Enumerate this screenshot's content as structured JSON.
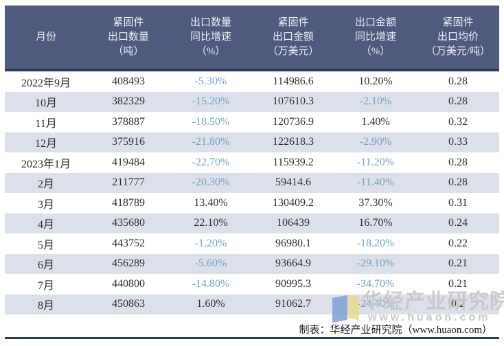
{
  "chart_data": {
    "type": "table",
    "title": "",
    "columns": [
      "月份",
      "紧固件\n出口数量\n（吨）",
      "出口数量\n同比增速\n（%）",
      "紧固件\n出口金额\n（万美元）",
      "出口金额\n同比增速\n（%）",
      "紧固件\n出口均价\n（万美元/吨）"
    ],
    "rows": [
      [
        "2022年9月",
        "408493",
        "-5.30%",
        "114986.6",
        "10.20%",
        "0.28"
      ],
      [
        "10月",
        "382329",
        "-15.20%",
        "107610.3",
        "-2.10%",
        "0.28"
      ],
      [
        "11月",
        "378887",
        "-18.50%",
        "120736.9",
        "1.40%",
        "0.32"
      ],
      [
        "12月",
        "375916",
        "-21.80%",
        "122618.3",
        "-2.90%",
        "0.33"
      ],
      [
        "2023年1月",
        "419484",
        "-22.70%",
        "115939.2",
        "-11.20%",
        "0.28"
      ],
      [
        "2月",
        "211777",
        "-20.30%",
        "59414.6",
        "-11.40%",
        "0.28"
      ],
      [
        "3月",
        "418789",
        "13.40%",
        "130409.2",
        "37.30%",
        "0.31"
      ],
      [
        "4月",
        "435680",
        "22.10%",
        "106439",
        "16.70%",
        "0.24"
      ],
      [
        "5月",
        "443752",
        "-1.20%",
        "96980.1",
        "-18.20%",
        "0.22"
      ],
      [
        "6月",
        "456289",
        "-5.60%",
        "93664.9",
        "-29.10%",
        "0.21"
      ],
      [
        "7月",
        "440800",
        "-14.80%",
        "90995.3",
        "-34.70%",
        "0.21"
      ],
      [
        "8月",
        "450863",
        "1.60%",
        "91062.7",
        "-24.40%",
        "0.2"
      ]
    ],
    "layout_hints": {
      "striped": true,
      "stripe_start_row_index": 1,
      "negative_values_colored": true
    }
  },
  "footer": {
    "credit": "制表：华经产业研究院（www.huaon.com）"
  },
  "watermark": {
    "text": "华经产业研究院",
    "url": "www.huaon.com",
    "logo": "huaon-logo"
  },
  "colors": {
    "header_bg": "#4f5b7c",
    "header_text": "#eceef4",
    "header_border": "#2b3a5e",
    "stripe_bg": "#dce0eb",
    "body_text": "#2e2e2e",
    "negative_value": "#72a2c4",
    "bottom_line": "#2b3a5e",
    "watermark_gray": "#c6c6c6",
    "logo_blue": "#7f9fd6",
    "logo_yellow": "#ead98c"
  }
}
